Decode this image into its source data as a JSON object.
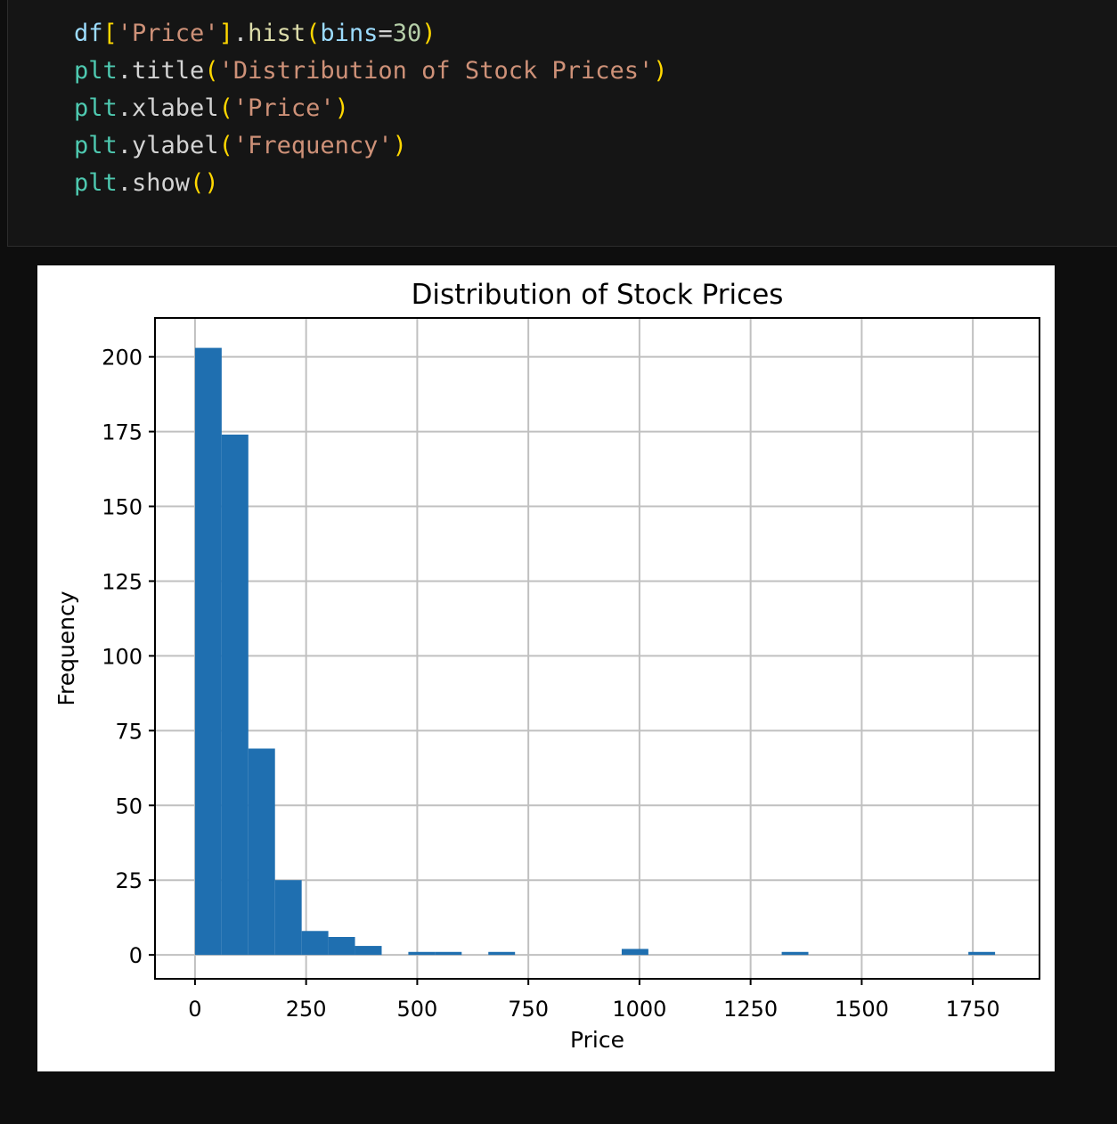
{
  "code": {
    "lines": [
      [
        {
          "t": "df",
          "c": "var"
        },
        {
          "t": "[",
          "c": "br"
        },
        {
          "t": "'Price'",
          "c": "str"
        },
        {
          "t": "]",
          "c": "br"
        },
        {
          "t": ".",
          "c": "pl"
        },
        {
          "t": "hist",
          "c": "fn"
        },
        {
          "t": "(",
          "c": "br"
        },
        {
          "t": "bins",
          "c": "var"
        },
        {
          "t": "=",
          "c": "pl"
        },
        {
          "t": "30",
          "c": "num"
        },
        {
          "t": ")",
          "c": "br"
        }
      ],
      [
        {
          "t": "plt",
          "c": "mod"
        },
        {
          "t": ".title",
          "c": "pl"
        },
        {
          "t": "(",
          "c": "br"
        },
        {
          "t": "'Distribution of Stock Prices'",
          "c": "str"
        },
        {
          "t": ")",
          "c": "br"
        }
      ],
      [
        {
          "t": "plt",
          "c": "mod"
        },
        {
          "t": ".xlabel",
          "c": "pl"
        },
        {
          "t": "(",
          "c": "br"
        },
        {
          "t": "'Price'",
          "c": "str"
        },
        {
          "t": ")",
          "c": "br"
        }
      ],
      [
        {
          "t": "plt",
          "c": "mod"
        },
        {
          "t": ".ylabel",
          "c": "pl"
        },
        {
          "t": "(",
          "c": "br"
        },
        {
          "t": "'Frequency'",
          "c": "str"
        },
        {
          "t": ")",
          "c": "br"
        }
      ],
      [
        {
          "t": "plt",
          "c": "mod"
        },
        {
          "t": ".show",
          "c": "pl"
        },
        {
          "t": "()",
          "c": "br"
        }
      ]
    ]
  },
  "colors": {
    "bar": "#1f6fb0",
    "grid": "#c0c0c0",
    "axis": "#000000"
  },
  "chart_data": {
    "type": "bar",
    "title": "Distribution of Stock Prices",
    "xlabel": "Price",
    "ylabel": "Frequency",
    "xlim": [
      -90,
      1900
    ],
    "ylim": [
      -8,
      213
    ],
    "x_ticks": [
      0,
      250,
      500,
      750,
      1000,
      1250,
      1500,
      1750
    ],
    "y_ticks": [
      0,
      25,
      50,
      75,
      100,
      125,
      150,
      175,
      200
    ],
    "grid": true,
    "bin_start": 0,
    "bin_width": 60,
    "values": [
      203,
      174,
      69,
      25,
      8,
      6,
      3,
      0,
      1,
      1,
      0,
      1,
      0,
      0,
      0,
      0,
      2,
      0,
      0,
      0,
      0,
      0,
      1,
      0,
      0,
      0,
      0,
      0,
      0,
      1
    ]
  }
}
